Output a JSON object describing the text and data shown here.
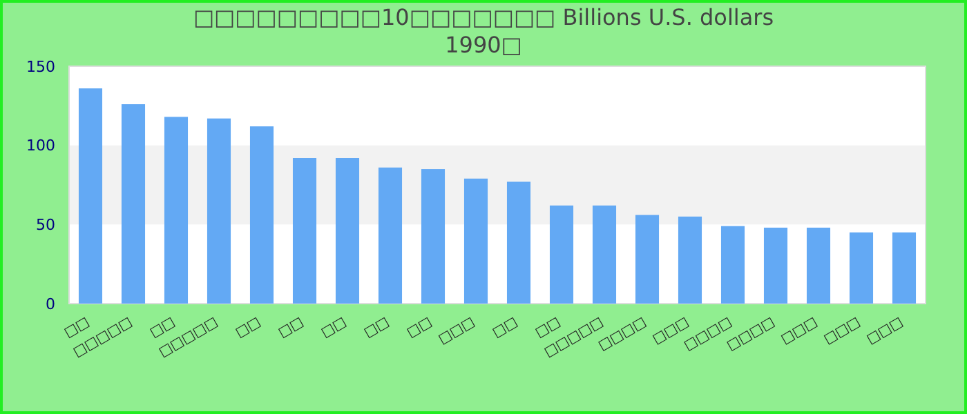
{
  "chart_data": {
    "type": "bar",
    "title": "□□□□□□□□□10□□□□□□□ Billions U.S. dollars",
    "subtitle": "1990□",
    "categories": [
      "□□",
      "□□□□□",
      "□□",
      "□□□□□",
      "□□",
      "□□",
      "□□",
      "□□",
      "□□",
      "□□□",
      "□□",
      "□□",
      "□□□□□",
      "□□□□",
      "□□□",
      "□□□□",
      "□□□□",
      "□□□",
      "□□□",
      "□□□"
    ],
    "values": [
      136,
      126,
      118,
      117,
      112,
      92,
      92,
      86,
      85,
      79,
      77,
      62,
      62,
      56,
      55,
      49,
      48,
      48,
      45,
      45
    ],
    "color": "#63a9f4",
    "ylim": [
      0,
      150
    ],
    "yticks": [
      0,
      50,
      100,
      150
    ],
    "grid": false,
    "bands": [
      {
        "axis": "y",
        "from": 50,
        "to": 100,
        "color": "#f2f2f2"
      }
    ]
  }
}
